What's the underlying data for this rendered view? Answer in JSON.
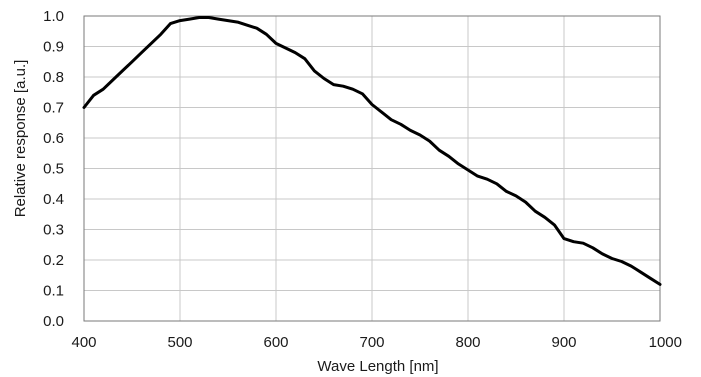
{
  "chart_data": {
    "type": "line",
    "xlabel": "Wave Length [nm]",
    "ylabel": "Relative response [a.u.]",
    "xlim": [
      400,
      1000
    ],
    "ylim": [
      0.0,
      1.0
    ],
    "x_ticks": [
      "400",
      "500",
      "600",
      "700",
      "800",
      "900",
      "1000"
    ],
    "y_ticks": [
      "0.0",
      "0.1",
      "0.2",
      "0.3",
      "0.4",
      "0.5",
      "0.6",
      "0.7",
      "0.8",
      "0.9",
      "1.0"
    ],
    "grid": true,
    "line_color": "#000000",
    "grid_color": "#c8c8c8",
    "series": [
      {
        "x": [
          400,
          410,
          420,
          430,
          440,
          450,
          460,
          470,
          480,
          490,
          500,
          510,
          520,
          530,
          540,
          550,
          560,
          570,
          580,
          590,
          600,
          610,
          620,
          630,
          640,
          650,
          660,
          670,
          680,
          690,
          700,
          710,
          720,
          730,
          740,
          750,
          760,
          770,
          780,
          790,
          800,
          810,
          820,
          830,
          840,
          850,
          860,
          870,
          880,
          890,
          900,
          910,
          920,
          930,
          940,
          950,
          960,
          970,
          980,
          990,
          1000
        ],
        "y": [
          0.7,
          0.74,
          0.76,
          0.79,
          0.82,
          0.85,
          0.88,
          0.91,
          0.94,
          0.975,
          0.985,
          0.99,
          0.995,
          0.995,
          0.99,
          0.985,
          0.98,
          0.97,
          0.96,
          0.94,
          0.91,
          0.895,
          0.88,
          0.86,
          0.82,
          0.795,
          0.775,
          0.77,
          0.76,
          0.745,
          0.71,
          0.685,
          0.66,
          0.645,
          0.625,
          0.61,
          0.59,
          0.56,
          0.54,
          0.515,
          0.495,
          0.475,
          0.465,
          0.45,
          0.425,
          0.41,
          0.39,
          0.36,
          0.34,
          0.315,
          0.27,
          0.26,
          0.255,
          0.24,
          0.22,
          0.205,
          0.195,
          0.18,
          0.16,
          0.14,
          0.12
        ]
      }
    ]
  }
}
